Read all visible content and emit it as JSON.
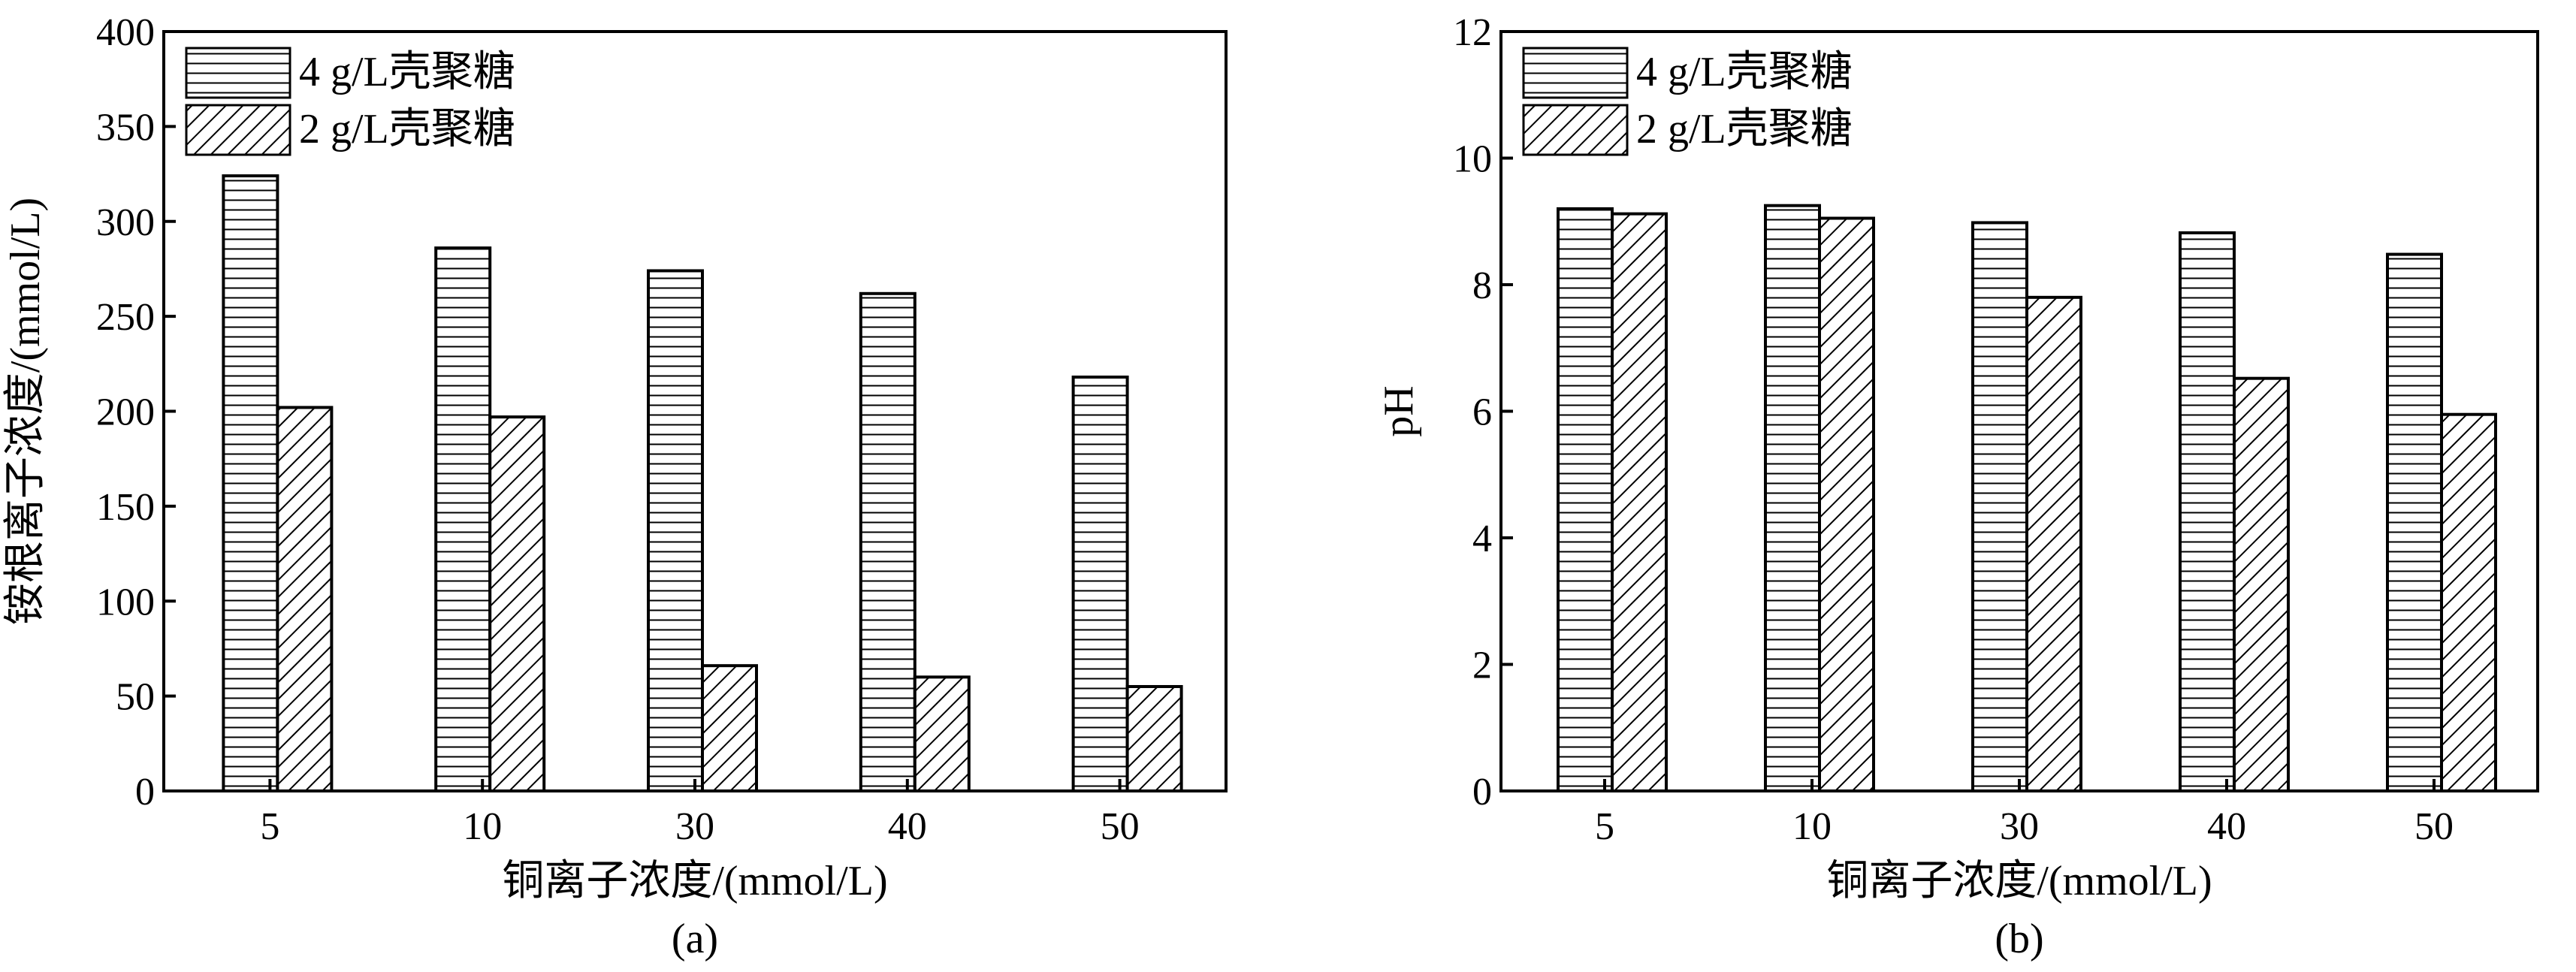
{
  "chart_data": [
    {
      "type": "bar",
      "panel_label": "(a)",
      "categories": [
        "5",
        "10",
        "30",
        "40",
        "50"
      ],
      "series": [
        {
          "name": "4 g/L壳聚糖",
          "values": [
            324,
            286,
            274,
            262,
            218
          ],
          "pattern": "horizontal-lines"
        },
        {
          "name": "2 g/L壳聚糖",
          "values": [
            202,
            197,
            66,
            60,
            55
          ],
          "pattern": "diagonal-hatch"
        }
      ],
      "xlabel": "铜离子浓度/(mmol/L)",
      "ylabel": "铵根离子浓度/(mmol/L)",
      "ylim": [
        0,
        400
      ],
      "yticks": [
        0,
        50,
        100,
        150,
        200,
        250,
        300,
        350,
        400
      ],
      "grid": false,
      "legend_position": "top-left"
    },
    {
      "type": "bar",
      "panel_label": "(b)",
      "categories": [
        "5",
        "10",
        "30",
        "40",
        "50"
      ],
      "series": [
        {
          "name": "4 g/L壳聚糖",
          "values": [
            9.2,
            9.25,
            8.98,
            8.82,
            8.48
          ],
          "pattern": "horizontal-lines"
        },
        {
          "name": "2 g/L壳聚糖",
          "values": [
            9.12,
            9.05,
            7.8,
            6.52,
            5.95
          ],
          "pattern": "diagonal-hatch"
        }
      ],
      "xlabel": "铜离子浓度/(mmol/L)",
      "ylabel": "pH",
      "ylim": [
        0,
        12
      ],
      "yticks": [
        0,
        2,
        4,
        6,
        8,
        10,
        12
      ],
      "grid": false,
      "legend_position": "top-left"
    }
  ]
}
